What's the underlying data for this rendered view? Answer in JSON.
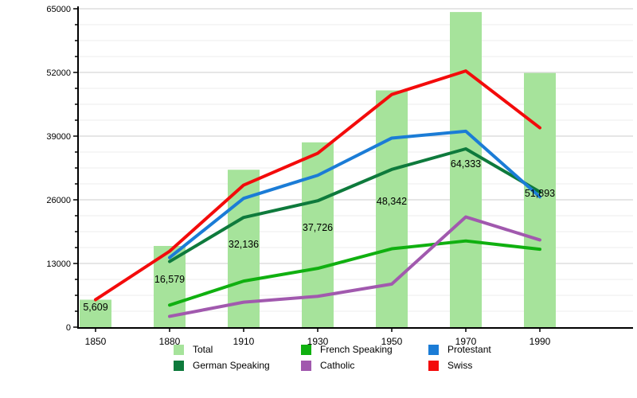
{
  "chart_data": {
    "type": "bar",
    "note": "combo bar+line population chart",
    "categories": [
      "1850",
      "1880",
      "1910",
      "1930",
      "1950",
      "1970",
      "1990"
    ],
    "bar_series": {
      "name": "Total",
      "values": [
        5609,
        16579,
        32136,
        37726,
        48342,
        64333,
        51893
      ],
      "value_labels": [
        "5,609",
        "16,579",
        "32,136",
        "37,726",
        "48,342",
        "64,333",
        "51,893"
      ],
      "color": "#a6e39b"
    },
    "line_series": [
      {
        "name": "German Speaking",
        "color": "#0e7a3c",
        "values": [
          null,
          13400,
          22400,
          25800,
          32200,
          36400,
          27600
        ]
      },
      {
        "name": "French Speaking",
        "color": "#10b010",
        "values": [
          null,
          4500,
          9400,
          12000,
          16000,
          17600,
          15900
        ]
      },
      {
        "name": "Catholic",
        "color": "#a159ae",
        "values": [
          null,
          2200,
          5100,
          6300,
          8800,
          22500,
          17800
        ]
      },
      {
        "name": "Protestant",
        "color": "#1b7cd6",
        "values": [
          null,
          14200,
          26300,
          31000,
          38600,
          40000,
          26600
        ]
      },
      {
        "name": "Swiss",
        "color": "#f30b0b",
        "values": [
          5609,
          15500,
          29000,
          35500,
          47500,
          52300,
          40700
        ]
      }
    ],
    "title": "",
    "xlabel": "",
    "ylabel": "",
    "ylim": [
      0,
      65000
    ],
    "ytick_interval": 13000,
    "minor_grid_interval": 3250,
    "ytick_labels": [
      "0",
      "13000",
      "26000",
      "39000",
      "52000",
      "65000"
    ],
    "grid": true,
    "legend_position": "bottom"
  },
  "legend": {
    "items": [
      {
        "label": "Total",
        "color": "#a6e39b"
      },
      {
        "label": "French Speaking",
        "color": "#10b010"
      },
      {
        "label": "Protestant",
        "color": "#1b7cd6"
      },
      {
        "label": "German Speaking",
        "color": "#0e7a3c"
      },
      {
        "label": "Catholic",
        "color": "#a159ae"
      },
      {
        "label": "Swiss",
        "color": "#f30b0b"
      }
    ]
  },
  "colors": {
    "background": "#ffffff",
    "axis": "#000000",
    "major_gridline": "#d8d8d8",
    "minor_gridline": "#ececec",
    "text": "#000000"
  }
}
